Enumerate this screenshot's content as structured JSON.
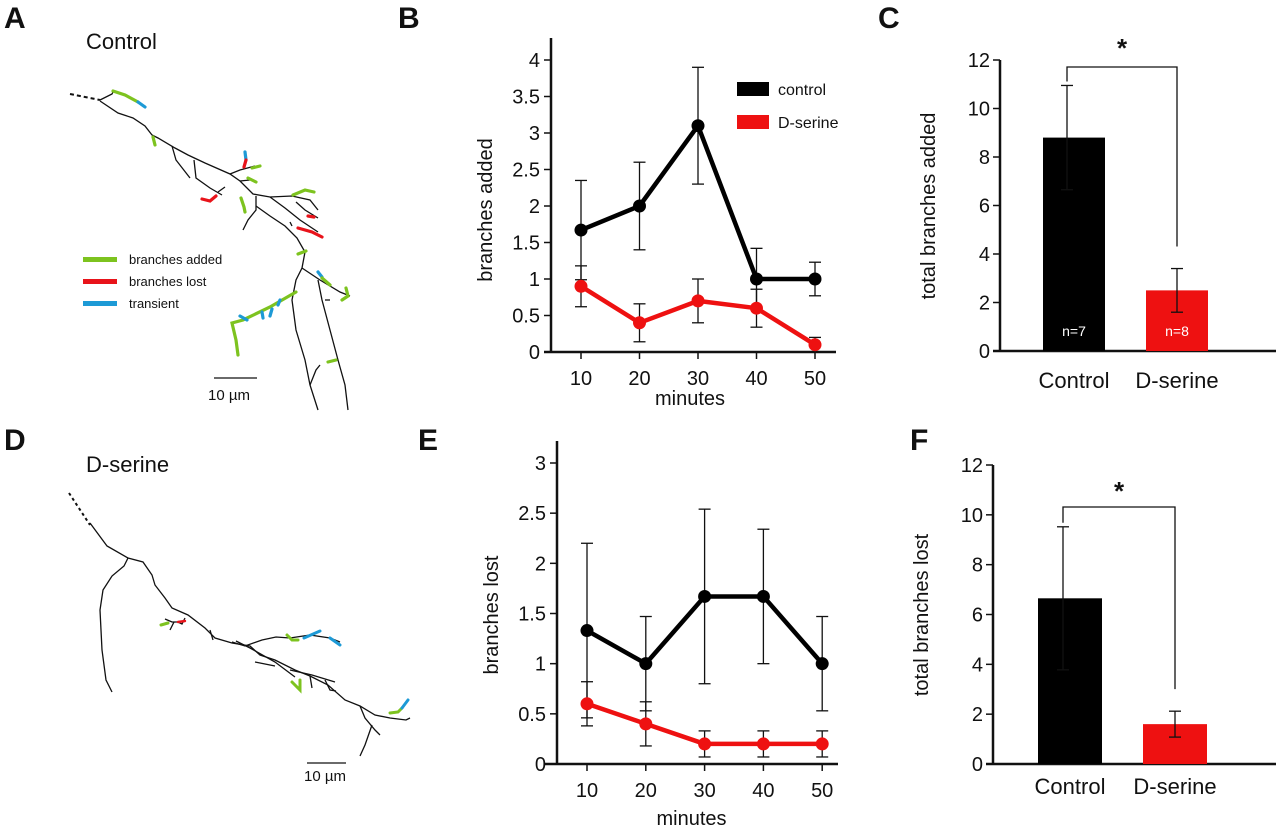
{
  "figure": {
    "panels": {
      "A": {
        "letter": "A",
        "title": "Control",
        "scale_bar": "10 µm",
        "legend": [
          {
            "label": "branches added",
            "color": "#7dc31f"
          },
          {
            "label": "branches lost",
            "color": "#e8131a"
          },
          {
            "label": "transient",
            "color": "#1d9ad6"
          }
        ]
      },
      "B": {
        "letter": "B"
      },
      "C": {
        "letter": "C"
      },
      "D": {
        "letter": "D",
        "title": "D-serine",
        "scale_bar": "10 µm"
      },
      "E": {
        "letter": "E"
      },
      "F": {
        "letter": "F"
      }
    }
  },
  "colors": {
    "control": "#000000",
    "dserine": "#ee1111"
  },
  "chart_data": [
    {
      "panel": "B",
      "type": "line",
      "xlabel": "minutes",
      "ylabel": "branches added",
      "x": [
        10,
        20,
        30,
        40,
        50
      ],
      "xticks": [
        "10",
        "20",
        "30",
        "40",
        "50"
      ],
      "yticks": [
        "0",
        "0.5",
        "1",
        "1.5",
        "2",
        "2.5",
        "3",
        "3.5",
        "4"
      ],
      "ylim": [
        0,
        4
      ],
      "legend_position": "top-right",
      "series": [
        {
          "name": "control",
          "values": [
            1.67,
            2.0,
            3.1,
            1.0,
            1.0
          ],
          "error": [
            0.68,
            0.6,
            0.8,
            0.42,
            0.23
          ]
        },
        {
          "name": "D-serine",
          "values": [
            0.9,
            0.4,
            0.7,
            0.6,
            0.1
          ],
          "error": [
            0.28,
            0.26,
            0.3,
            0.26,
            0.1
          ]
        }
      ]
    },
    {
      "panel": "C",
      "type": "bar",
      "categories": [
        "Control",
        "D-serine"
      ],
      "values": [
        8.8,
        2.5
      ],
      "error": [
        2.15,
        0.9
      ],
      "n_labels": [
        "n=7",
        "n=8"
      ],
      "ylabel": "total branches added",
      "yticks": [
        "0",
        "2",
        "4",
        "6",
        "8",
        "10",
        "12"
      ],
      "ylim": [
        0,
        12
      ],
      "significance": "*"
    },
    {
      "panel": "E",
      "type": "line",
      "xlabel": "minutes",
      "ylabel": "branches lost",
      "x": [
        10,
        20,
        30,
        40,
        50
      ],
      "xticks": [
        "10",
        "20",
        "30",
        "40",
        "50"
      ],
      "yticks": [
        "0",
        "0.5",
        "1",
        "1.5",
        "2",
        "2.5",
        "3"
      ],
      "ylim": [
        0,
        3
      ],
      "series": [
        {
          "name": "control",
          "values": [
            1.33,
            1.0,
            1.67,
            1.67,
            1.0
          ],
          "error": [
            0.87,
            0.47,
            0.87,
            0.67,
            0.47
          ]
        },
        {
          "name": "D-serine",
          "values": [
            0.6,
            0.4,
            0.2,
            0.2,
            0.2
          ],
          "error": [
            0.22,
            0.22,
            0.13,
            0.13,
            0.13
          ]
        }
      ]
    },
    {
      "panel": "F",
      "type": "bar",
      "categories": [
        "Control",
        "D-serine"
      ],
      "values": [
        6.65,
        1.6
      ],
      "error": [
        2.87,
        0.52
      ],
      "ylabel": "total branches lost",
      "yticks": [
        "0",
        "2",
        "4",
        "6",
        "8",
        "10",
        "12"
      ],
      "ylim": [
        0,
        12
      ],
      "significance": "*"
    }
  ]
}
